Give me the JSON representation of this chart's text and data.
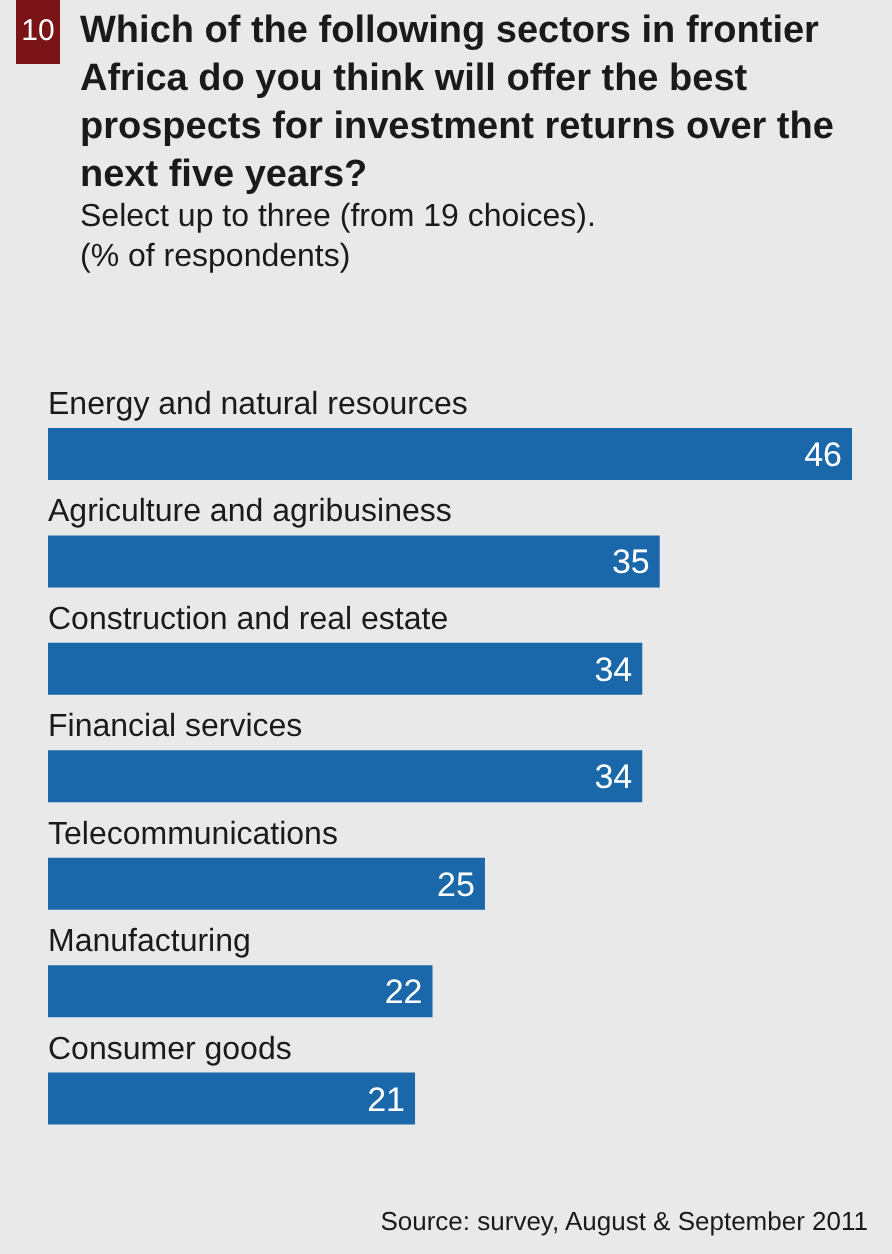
{
  "chart_data": {
    "type": "bar",
    "orientation": "horizontal",
    "title": "Which of the following sectors in frontier Africa do you think will offer the best prospects for investment returns over the next five years?",
    "subtitle": "Select up to three (from 19 choices).\n(% of respondents)",
    "categories": [
      "Energy and natural resources",
      "Agriculture and agribusiness",
      "Construction and real estate",
      "Financial services",
      "Telecommunications",
      "Manufacturing",
      "Consumer goods"
    ],
    "values": [
      46,
      35,
      34,
      34,
      25,
      22,
      21
    ],
    "color": "#1a68aa",
    "data_labels": true,
    "annotations": [
      "10",
      "Source: survey, August & September 2011"
    ]
  }
}
